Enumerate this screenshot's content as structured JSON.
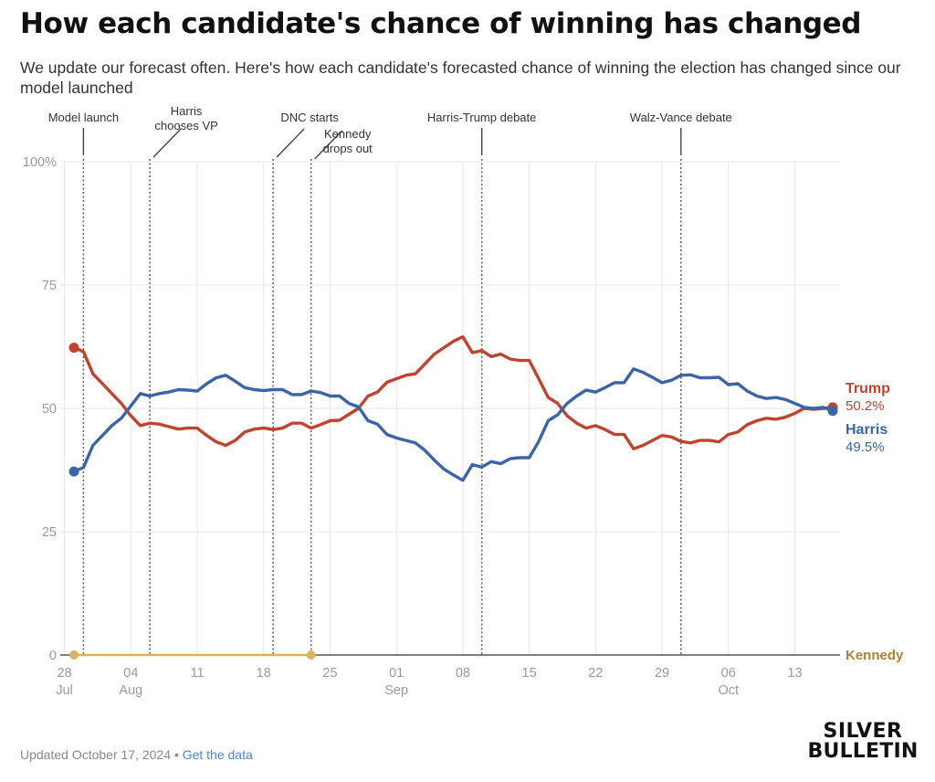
{
  "header": {
    "title": "How each candidate's chance of winning has changed",
    "subtitle": "We update our forecast often. Here's how each candidate's forecasted chance of winning the election has changed since our model launched"
  },
  "footer": {
    "updated": "Updated October 17, 2024",
    "separator": " • ",
    "link_label": "Get the data"
  },
  "logo": {
    "line1": "SILVER",
    "line2": "BULLETIN"
  },
  "colors": {
    "trump": "#c0422f",
    "harris": "#3b65a7",
    "kennedy": "#d9b35f",
    "kennedy_label": "#a98730",
    "grid": "#e6e6e6",
    "axis_text": "#999999"
  },
  "chart_data": {
    "type": "line",
    "title": "How each candidate's chance of winning has changed",
    "xlabel": "",
    "ylabel": "",
    "x_unit": "days since Jul 28, 2024",
    "xlim": [
      -1.5,
      80
    ],
    "ylim": [
      0,
      100
    ],
    "grid": true,
    "y_ticks": [
      {
        "value": 0,
        "label": "0"
      },
      {
        "value": 25,
        "label": "25"
      },
      {
        "value": 50,
        "label": "50"
      },
      {
        "value": 75,
        "label": "75"
      },
      {
        "value": 100,
        "label": "100%"
      }
    ],
    "x_ticks": [
      {
        "value": -1,
        "label": "28",
        "month": "Jul"
      },
      {
        "value": 6,
        "label": "04",
        "month": "Aug"
      },
      {
        "value": 13,
        "label": "11",
        "month": ""
      },
      {
        "value": 20,
        "label": "18",
        "month": ""
      },
      {
        "value": 27,
        "label": "25",
        "month": ""
      },
      {
        "value": 34,
        "label": "01",
        "month": "Sep"
      },
      {
        "value": 41,
        "label": "08",
        "month": ""
      },
      {
        "value": 48,
        "label": "15",
        "month": ""
      },
      {
        "value": 55,
        "label": "22",
        "month": ""
      },
      {
        "value": 62,
        "label": "29",
        "month": ""
      },
      {
        "value": 69,
        "label": "06",
        "month": "Oct"
      },
      {
        "value": 76,
        "label": "13",
        "month": ""
      }
    ],
    "events": [
      {
        "x": 1,
        "label": [
          "Model launch"
        ],
        "style": "straight"
      },
      {
        "x": 8,
        "label": [
          "Harris",
          "chooses VP"
        ],
        "style": "diagonal"
      },
      {
        "x": 21,
        "label": [
          "DNC starts"
        ],
        "style": "diagonal"
      },
      {
        "x": 25,
        "label": [
          "Kennedy",
          "drops out"
        ],
        "style": "diagonal"
      },
      {
        "x": 43,
        "label": [
          "Harris-Trump debate"
        ],
        "style": "straight"
      },
      {
        "x": 64,
        "label": [
          "Walz-Vance debate"
        ],
        "style": "straight"
      }
    ],
    "series": [
      {
        "name": "Trump",
        "final_label": "50.2%",
        "x": [
          0,
          1,
          2,
          3,
          4,
          5,
          6,
          7,
          8,
          9,
          10,
          11,
          12,
          13,
          14,
          15,
          16,
          17,
          18,
          19,
          20,
          21,
          22,
          23,
          24,
          25,
          26,
          27,
          28,
          29,
          30,
          31,
          32,
          33,
          34,
          35,
          36,
          37,
          38,
          39,
          40,
          41,
          42,
          43,
          44,
          45,
          46,
          47,
          48,
          49,
          50,
          51,
          52,
          53,
          54,
          55,
          56,
          57,
          58,
          59,
          60,
          61,
          62,
          63,
          64,
          65,
          66,
          67,
          68,
          69,
          70,
          71,
          72,
          73,
          74,
          75,
          76,
          77,
          78,
          79,
          80
        ],
        "values": [
          62.3,
          61.5,
          57,
          55,
          53,
          51,
          48.5,
          46.5,
          47,
          46.8,
          46.3,
          45.8,
          46,
          46,
          44.5,
          43.2,
          42.5,
          43.5,
          45.2,
          45.8,
          46,
          45.7,
          46,
          47,
          47,
          46,
          46.7,
          47.5,
          47.6,
          48.8,
          50,
          52.5,
          53.3,
          55.3,
          56,
          56.7,
          57,
          59,
          61,
          62.3,
          63.6,
          64.5,
          61.3,
          61.7,
          60.5,
          61,
          60,
          59.7,
          59.7,
          56,
          52.2,
          51,
          48.5,
          47,
          46,
          46.5,
          45.7,
          44.7,
          44.7,
          41.8,
          42.5,
          43.5,
          44.5,
          44.2,
          43.3,
          43,
          43.5,
          43.5,
          43.2,
          44.7,
          45.2,
          46.7,
          47.5,
          48,
          47.8,
          48.2,
          49,
          50,
          49.8,
          50,
          50.2
        ]
      },
      {
        "name": "Harris",
        "final_label": "49.5%",
        "x": [
          0,
          1,
          2,
          3,
          4,
          5,
          6,
          7,
          8,
          9,
          10,
          11,
          12,
          13,
          14,
          15,
          16,
          17,
          18,
          19,
          20,
          21,
          22,
          23,
          24,
          25,
          26,
          27,
          28,
          29,
          30,
          31,
          32,
          33,
          34,
          35,
          36,
          37,
          38,
          39,
          40,
          41,
          42,
          43,
          44,
          45,
          46,
          47,
          48,
          49,
          50,
          51,
          52,
          53,
          54,
          55,
          56,
          57,
          58,
          59,
          60,
          61,
          62,
          63,
          64,
          65,
          66,
          67,
          68,
          69,
          70,
          71,
          72,
          73,
          74,
          75,
          76,
          77,
          78,
          79,
          80
        ],
        "values": [
          37.2,
          38,
          42.5,
          44.5,
          46.5,
          48,
          50.5,
          53,
          52.5,
          53,
          53.3,
          53.8,
          53.7,
          53.5,
          55,
          56.2,
          56.7,
          55.5,
          54.2,
          53.8,
          53.6,
          53.8,
          53.8,
          52.8,
          52.8,
          53.5,
          53.2,
          52.5,
          52.5,
          51,
          50.3,
          47.5,
          46.8,
          44.7,
          44,
          43.5,
          43,
          41.5,
          39.5,
          37.7,
          36.5,
          35.4,
          38.6,
          38.1,
          39.2,
          38.8,
          39.8,
          40,
          40,
          43.3,
          47.5,
          48.7,
          51,
          52.5,
          53.7,
          53.3,
          54.2,
          55.2,
          55.2,
          58,
          57.3,
          56.3,
          55.2,
          55.7,
          56.7,
          56.8,
          56.2,
          56.2,
          56.3,
          54.8,
          55,
          53.5,
          52.5,
          52,
          52.2,
          51.8,
          51,
          50.2,
          50,
          50.2,
          49.5
        ]
      },
      {
        "name": "Kennedy",
        "final_label": "",
        "x": [
          0,
          25
        ],
        "values": [
          0,
          0
        ]
      }
    ]
  }
}
